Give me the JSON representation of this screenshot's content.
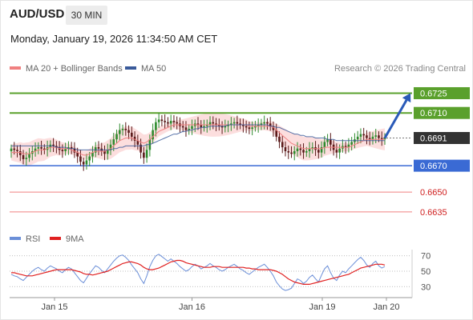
{
  "header": {
    "pair": "AUD/USD",
    "timeframe": "30 MIN",
    "datetime": "Monday, January 19, 2026 11:34:50 AM CET"
  },
  "legend": {
    "bb_label": "MA 20 + Bollinger Bands",
    "ma50_label": "MA 50",
    "bb_color": "#f08080",
    "ma50_color": "#3a5a9a",
    "credit": "Research © 2026 Trading Central"
  },
  "rsi_legend": {
    "rsi_label": "RSI",
    "ma_label": "9MA",
    "rsi_color": "#6b8fd8",
    "ma_color": "#e02020"
  },
  "colors": {
    "resistance": "#5aa02c",
    "pivot": "#3a6ad4",
    "support": "#f08080",
    "current": "#333333",
    "bull_candle": "#2e8b2e",
    "bear_candle": "#5a1a1a"
  },
  "chart_data": {
    "type": "candlestick",
    "y_range": [
      0.6627,
      0.6735
    ],
    "x_labels": [
      "Jan 15",
      "Jan 16",
      "Jan 19",
      "Jan 20"
    ],
    "levels": [
      {
        "value": 0.6725,
        "label": "0.6725",
        "kind": "resistance"
      },
      {
        "value": 0.671,
        "label": "0.6710",
        "kind": "resistance"
      },
      {
        "value": 0.6691,
        "label": "0.6691",
        "kind": "current"
      },
      {
        "value": 0.667,
        "label": "0.6670",
        "kind": "pivot"
      },
      {
        "value": 0.665,
        "label": "0.6650",
        "kind": "support"
      },
      {
        "value": 0.6635,
        "label": "0.6635",
        "kind": "support"
      }
    ],
    "forecast": {
      "from": 0.6691,
      "to": 0.6725
    },
    "closes": [
      0.6683,
      0.6682,
      0.6681,
      0.6678,
      0.6675,
      0.6676,
      0.6679,
      0.6681,
      0.6683,
      0.6684,
      0.6683,
      0.6682,
      0.6684,
      0.6686,
      0.6685,
      0.6684,
      0.6682,
      0.6681,
      0.6683,
      0.6684,
      0.6683,
      0.668,
      0.6677,
      0.6673,
      0.6671,
      0.6674,
      0.6677,
      0.668,
      0.6684,
      0.6683,
      0.6681,
      0.6679,
      0.6682,
      0.6686,
      0.669,
      0.6694,
      0.6697,
      0.6698,
      0.6697,
      0.6695,
      0.6692,
      0.6689,
      0.6686,
      0.668,
      0.6676,
      0.6682,
      0.669,
      0.6697,
      0.6703,
      0.6705,
      0.6704,
      0.6703,
      0.6702,
      0.6704,
      0.6703,
      0.6702,
      0.67,
      0.6699,
      0.6697,
      0.6698,
      0.67,
      0.6702,
      0.6701,
      0.6699,
      0.67,
      0.6701,
      0.6703,
      0.6702,
      0.6701,
      0.67,
      0.6699,
      0.67,
      0.6701,
      0.6702,
      0.6703,
      0.6702,
      0.6701,
      0.67,
      0.6699,
      0.6698,
      0.6699,
      0.67,
      0.6701,
      0.6702,
      0.6703,
      0.6702,
      0.67,
      0.6697,
      0.6692,
      0.6688,
      0.6684,
      0.6681,
      0.668,
      0.6679,
      0.6681,
      0.6683,
      0.6682,
      0.668,
      0.6681,
      0.6683,
      0.6684,
      0.6682,
      0.668,
      0.6684,
      0.6688,
      0.669,
      0.6686,
      0.6682,
      0.668,
      0.6683,
      0.6685,
      0.6684,
      0.6686,
      0.6688,
      0.669,
      0.6692,
      0.6694,
      0.6693,
      0.6691,
      0.669,
      0.6692,
      0.6693,
      0.6691,
      0.669,
      0.6691
    ],
    "ma20": [
      0.668,
      0.668,
      0.668,
      0.668,
      0.6679,
      0.6679,
      0.6679,
      0.668,
      0.6681,
      0.6682,
      0.6682,
      0.6682,
      0.6683,
      0.6684,
      0.6684,
      0.6684,
      0.6683,
      0.6683,
      0.6683,
      0.6683,
      0.6682,
      0.6681,
      0.668,
      0.6679,
      0.6678,
      0.6678,
      0.6679,
      0.668,
      0.6681,
      0.6681,
      0.6681,
      0.6681,
      0.6682,
      0.6683,
      0.6685,
      0.6687,
      0.6689,
      0.669,
      0.6691,
      0.6691,
      0.6691,
      0.669,
      0.6689,
      0.6688,
      0.6687,
      0.6688,
      0.669,
      0.6692,
      0.6694,
      0.6696,
      0.6697,
      0.6698,
      0.6699,
      0.67,
      0.6701,
      0.6701,
      0.6701,
      0.6701,
      0.6701,
      0.6701,
      0.6701,
      0.6701,
      0.6701,
      0.6701,
      0.6701,
      0.6701,
      0.6701,
      0.6701,
      0.6701,
      0.6701,
      0.6701,
      0.6701,
      0.6701,
      0.6701,
      0.6701,
      0.6701,
      0.6701,
      0.6701,
      0.6701,
      0.67,
      0.67,
      0.67,
      0.67,
      0.67,
      0.67,
      0.67,
      0.67,
      0.6699,
      0.6697,
      0.6695,
      0.6693,
      0.6691,
      0.6689,
      0.6687,
      0.6686,
      0.6685,
      0.6684,
      0.6683,
      0.6683,
      0.6683,
      0.6683,
      0.6683,
      0.6683,
      0.6683,
      0.6684,
      0.6684,
      0.6684,
      0.6684,
      0.6684,
      0.6684,
      0.6684,
      0.6684,
      0.6684,
      0.6685,
      0.6686,
      0.6687,
      0.6688,
      0.6689,
      0.669,
      0.669,
      0.669,
      0.669,
      0.669,
      0.669,
      0.669
    ],
    "ma50": [
      0.6685,
      0.6685,
      0.6685,
      0.6685,
      0.6685,
      0.6685,
      0.6685,
      0.6685,
      0.6685,
      0.6685,
      0.6685,
      0.6685,
      0.6685,
      0.6685,
      0.6685,
      0.6684,
      0.6684,
      0.6684,
      0.6684,
      0.6683,
      0.6683,
      0.6683,
      0.6682,
      0.6682,
      0.6682,
      0.6682,
      0.6682,
      0.6682,
      0.6682,
      0.6682,
      0.6682,
      0.6682,
      0.6682,
      0.6682,
      0.6683,
      0.6683,
      0.6684,
      0.6684,
      0.6685,
      0.6685,
      0.6685,
      0.6685,
      0.6685,
      0.6685,
      0.6685,
      0.6686,
      0.6686,
      0.6687,
      0.6688,
      0.6689,
      0.669,
      0.6691,
      0.6692,
      0.6693,
      0.6694,
      0.6694,
      0.6695,
      0.6696,
      0.6696,
      0.6697,
      0.6697,
      0.6698,
      0.6698,
      0.6699,
      0.6699,
      0.6699,
      0.67,
      0.67,
      0.67,
      0.67,
      0.67,
      0.67,
      0.6701,
      0.6701,
      0.6701,
      0.6701,
      0.6701,
      0.6701,
      0.6701,
      0.6701,
      0.6701,
      0.6701,
      0.6701,
      0.6701,
      0.6701,
      0.6701,
      0.67,
      0.67,
      0.6699,
      0.6699,
      0.6698,
      0.6697,
      0.6696,
      0.6695,
      0.6694,
      0.6694,
      0.6693,
      0.6693,
      0.6692,
      0.6692,
      0.6692,
      0.6691,
      0.6691,
      0.6691,
      0.6691,
      0.669,
      0.669,
      0.669,
      0.6689,
      0.6689,
      0.6689,
      0.6689,
      0.6689,
      0.6689,
      0.6689,
      0.6689,
      0.6689,
      0.6689,
      0.6689,
      0.6689,
      0.6689,
      0.6689,
      0.6689,
      0.6689,
      0.6689
    ],
    "bb_width": 0.0006,
    "rsi": {
      "levels": [
        70,
        50,
        30
      ],
      "y_range": [
        22,
        78
      ],
      "values": [
        46,
        44,
        43,
        40,
        38,
        42,
        46,
        50,
        53,
        55,
        52,
        50,
        54,
        57,
        55,
        53,
        50,
        48,
        52,
        55,
        53,
        48,
        43,
        38,
        35,
        41,
        47,
        52,
        57,
        55,
        51,
        48,
        53,
        58,
        63,
        67,
        70,
        71,
        68,
        64,
        58,
        53,
        48,
        40,
        34,
        44,
        56,
        64,
        70,
        72,
        69,
        66,
        63,
        66,
        63,
        60,
        56,
        53,
        50,
        52,
        56,
        59,
        57,
        53,
        55,
        57,
        60,
        57,
        55,
        52,
        50,
        52,
        55,
        57,
        59,
        56,
        53,
        51,
        48,
        46,
        49,
        52,
        55,
        57,
        59,
        55,
        50,
        44,
        36,
        31,
        27,
        25,
        26,
        28,
        34,
        40,
        38,
        34,
        37,
        42,
        45,
        40,
        36,
        45,
        53,
        57,
        48,
        41,
        38,
        45,
        50,
        48,
        53,
        57,
        61,
        65,
        68,
        64,
        58,
        55,
        60,
        63,
        57,
        54,
        56
      ],
      "ma9": [
        48,
        48,
        47,
        46,
        45,
        44,
        44,
        44,
        45,
        46,
        47,
        48,
        49,
        50,
        51,
        52,
        52,
        52,
        52,
        52,
        52,
        51,
        50,
        49,
        47,
        46,
        46,
        45,
        46,
        47,
        48,
        49,
        50,
        52,
        54,
        56,
        58,
        60,
        61,
        62,
        62,
        61,
        60,
        58,
        55,
        53,
        52,
        52,
        53,
        54,
        56,
        58,
        60,
        62,
        63,
        64,
        64,
        63,
        61,
        60,
        59,
        58,
        57,
        56,
        55,
        55,
        55,
        56,
        56,
        56,
        55,
        55,
        55,
        55,
        55,
        55,
        55,
        55,
        54,
        54,
        53,
        53,
        52,
        52,
        52,
        52,
        52,
        51,
        50,
        48,
        46,
        43,
        40,
        38,
        36,
        35,
        34,
        33,
        33,
        33,
        34,
        35,
        36,
        37,
        38,
        39,
        40,
        41,
        42,
        43,
        44,
        45,
        46,
        48,
        50,
        52,
        54,
        55,
        56,
        57,
        58,
        59,
        59,
        59,
        58
      ]
    }
  }
}
